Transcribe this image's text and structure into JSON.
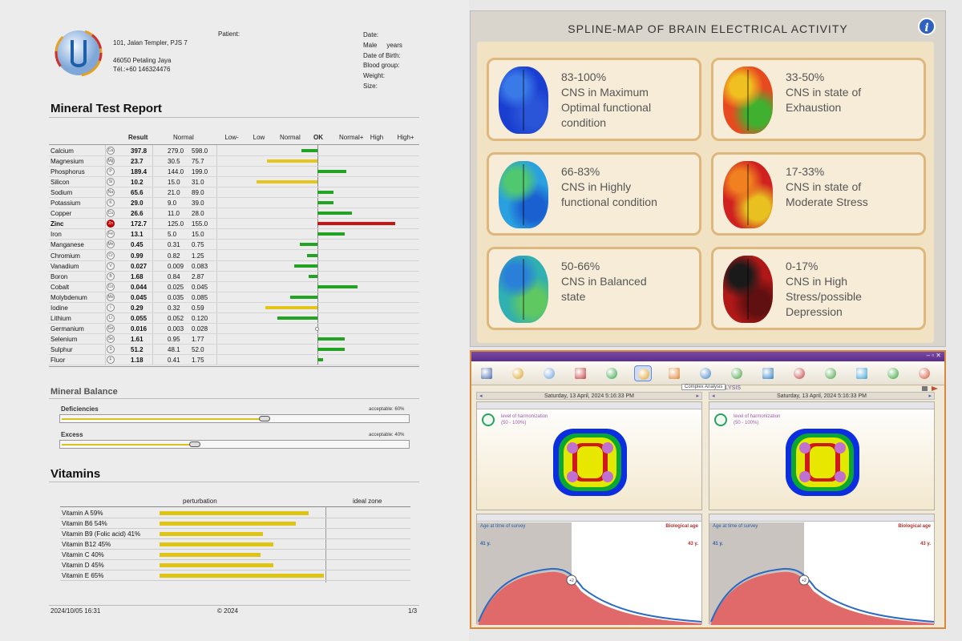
{
  "report": {
    "clinic_address": [
      "101, Jalan Templer, PJS 7",
      "46050 Petaling Jaya",
      "Tél.:+60 146324476"
    ],
    "patient_label": "Patient:",
    "fields": [
      "Date:",
      "Male",
      "years",
      "Date of Birth:",
      "Blood group:",
      "Weight:",
      "Size:"
    ],
    "title": "Mineral Test Report",
    "table_headers": {
      "result": "Result",
      "normal": "Normal",
      "scale": [
        "Low-",
        "Low",
        "Normal",
        "OK",
        "Normal+",
        "High",
        "High+"
      ]
    },
    "minerals": [
      {
        "name": "Calcium",
        "symbol": "Ca",
        "result": "397.8",
        "low": "279.0",
        "high": "598.0",
        "dev": -0.55,
        "color": "green"
      },
      {
        "name": "Magnesium",
        "symbol": "Mg",
        "result": "23.7",
        "low": "30.5",
        "high": "75.7",
        "dev": -1.75,
        "color": "yellow"
      },
      {
        "name": "Phosphorus",
        "symbol": "P",
        "result": "189.4",
        "low": "144.0",
        "high": "199.0",
        "dev": 1.0,
        "color": "green"
      },
      {
        "name": "Silicon",
        "symbol": "Si",
        "result": "10.2",
        "low": "15.0",
        "high": "31.0",
        "dev": -2.1,
        "color": "yellow"
      },
      {
        "name": "Sodium",
        "symbol": "Na",
        "result": "65.6",
        "low": "21.0",
        "high": "89.0",
        "dev": 0.55,
        "color": "green"
      },
      {
        "name": "Potassium",
        "symbol": "K",
        "result": "29.0",
        "low": "9.0",
        "high": "39.0",
        "dev": 0.55,
        "color": "green"
      },
      {
        "name": "Copper",
        "symbol": "Cu",
        "result": "26.6",
        "low": "11.0",
        "high": "28.0",
        "dev": 1.2,
        "color": "green"
      },
      {
        "name": "Zinc",
        "symbol": "Zn",
        "result": "172.7",
        "low": "125.0",
        "high": "155.0",
        "dev": 2.7,
        "color": "red",
        "alert": true
      },
      {
        "name": "Iron",
        "symbol": "Fe",
        "result": "13.1",
        "low": "5.0",
        "high": "15.0",
        "dev": 0.95,
        "color": "green"
      },
      {
        "name": "Manganese",
        "symbol": "Mn",
        "result": "0.45",
        "low": "0.31",
        "high": "0.75",
        "dev": -0.6,
        "color": "green"
      },
      {
        "name": "Chromium",
        "symbol": "Cr",
        "result": "0.99",
        "low": "0.82",
        "high": "1.25",
        "dev": -0.35,
        "color": "green"
      },
      {
        "name": "Vanadium",
        "symbol": "V",
        "result": "0.027",
        "low": "0.009",
        "high": "0.083",
        "dev": -0.8,
        "color": "green"
      },
      {
        "name": "Boron",
        "symbol": "B",
        "result": "1.68",
        "low": "0.84",
        "high": "2.87",
        "dev": -0.3,
        "color": "green"
      },
      {
        "name": "Cobalt",
        "symbol": "Co",
        "result": "0.044",
        "low": "0.025",
        "high": "0.045",
        "dev": 1.4,
        "color": "green"
      },
      {
        "name": "Molybdenum",
        "symbol": "Mo",
        "result": "0.045",
        "low": "0.035",
        "high": "0.085",
        "dev": -0.95,
        "color": "green"
      },
      {
        "name": "Iodine",
        "symbol": "I",
        "result": "0.29",
        "low": "0.32",
        "high": "0.59",
        "dev": -1.8,
        "color": "yellow"
      },
      {
        "name": "Lithium",
        "symbol": "Li",
        "result": "0.055",
        "low": "0.052",
        "high": "0.120",
        "dev": -1.4,
        "color": "green"
      },
      {
        "name": "Germanium",
        "symbol": "Ge",
        "result": "0.016",
        "low": "0.003",
        "high": "0.028",
        "dev": 0,
        "color": "none"
      },
      {
        "name": "Selenium",
        "symbol": "Se",
        "result": "1.61",
        "low": "0.95",
        "high": "1.77",
        "dev": 0.95,
        "color": "green"
      },
      {
        "name": "Sulphur",
        "symbol": "S",
        "result": "51.2",
        "low": "48.1",
        "high": "52.0",
        "dev": 0.95,
        "color": "green"
      },
      {
        "name": "Fluor",
        "symbol": "F",
        "result": "1.18",
        "low": "0.41",
        "high": "1.75",
        "dev": 0.2,
        "color": "green"
      }
    ],
    "mineral_balance": {
      "title": "Mineral Balance",
      "items": [
        {
          "label": "Deficiencies",
          "acceptable": "acceptable: 60%",
          "value": 0.6
        },
        {
          "label": "Excess",
          "acceptable": "acceptable: 40%",
          "value": 0.4
        }
      ]
    },
    "vitamins": {
      "title": "Vitamins",
      "col_perturbation": "perturbation",
      "col_ideal": "ideal zone",
      "items": [
        {
          "label": "Vitamin A 59%",
          "value": 59
        },
        {
          "label": "Vitamin B6 54%",
          "value": 54
        },
        {
          "label": "Vitamin B9 (Folic acid) 41%",
          "value": 41
        },
        {
          "label": "Vitamin B12 45%",
          "value": 45
        },
        {
          "label": "Vitamin C 40%",
          "value": 40
        },
        {
          "label": "Vitamin D 45%",
          "value": 45
        },
        {
          "label": "Vitamin E 65%",
          "value": 65
        }
      ]
    },
    "footer": {
      "datetime": "2024/10/05 16:31",
      "copyright": "© 2024",
      "page": "1/3"
    }
  },
  "spline": {
    "title": "SPLINE-MAP OF BRAIN ELECTRICAL ACTIVITY",
    "info": "i",
    "cards": [
      {
        "lines": [
          "83-100%",
          "CNS in Maximum",
          "Optimal functional",
          "condition"
        ],
        "colors": [
          "#1a3fd0",
          "#3a7ae8",
          "#2a55d8"
        ]
      },
      {
        "lines": [
          "33-50%",
          "CNS in state of",
          "Exhaustion"
        ],
        "colors": [
          "#e84a20",
          "#f0c020",
          "#40b030"
        ]
      },
      {
        "lines": [
          "66-83%",
          "CNS in Highly",
          "functional condition"
        ],
        "colors": [
          "#2aa0e0",
          "#50c870",
          "#1a60d0"
        ]
      },
      {
        "lines": [
          "17-33%",
          "CNS in state of",
          "Moderate Stress"
        ],
        "colors": [
          "#d02020",
          "#f08020",
          "#e8c020"
        ]
      },
      {
        "lines": [
          "50-66%",
          "CNS in Balanced",
          "state"
        ],
        "colors": [
          "#30b0b0",
          "#2a80d8",
          "#60c860"
        ]
      },
      {
        "lines": [
          "0-17%",
          "CNS in High",
          "Stress/possible",
          "Depression"
        ],
        "colors": [
          "#b01818",
          "#1a1a1a",
          "#601010"
        ]
      }
    ]
  },
  "app": {
    "tooltip": "Complex Analysis",
    "header_partial": "ALYSIS",
    "date": "Saturday, 13 April, 2024 5:16:33 PM",
    "panels": [
      {
        "harmonization": "level of harmonization",
        "range": "(50 - 100%)",
        "age_label": "Age at time of survey",
        "bio_label": "Biological age",
        "age": "41 y.",
        "bio_age": "43 y.",
        "marker": "+2"
      },
      {
        "harmonization": "level of harmonization",
        "range": "(50 - 100%)",
        "age_label": "Age at time of survey",
        "bio_label": "Biological age",
        "age": "41 y.",
        "bio_age": "43 y.",
        "marker": "+2"
      }
    ]
  },
  "colors": {
    "green": "#22a323",
    "yellow": "#e3c51c",
    "red": "#c81414",
    "accent": "#5a2d86",
    "frame": "#d88a3a"
  }
}
